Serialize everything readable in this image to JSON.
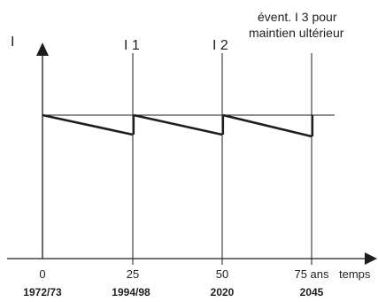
{
  "labels": {
    "y_axis": "I",
    "intervention_1": "I 1",
    "intervention_2": "I 2",
    "note_line1": "évent. I 3 pour",
    "note_line2": "maintien ultérieur",
    "x_axis": "temps"
  },
  "ticks": [
    {
      "value": "0",
      "year": "1972/73"
    },
    {
      "value": "25",
      "year": "1994/98"
    },
    {
      "value": "50",
      "year": "2020"
    },
    {
      "value": "75 ans",
      "year": "2045"
    }
  ]
}
